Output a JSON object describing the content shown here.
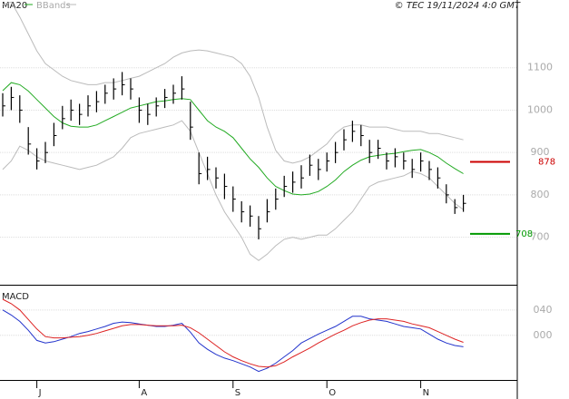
{
  "chart_data": [
    {
      "type": "ohlc",
      "source": "© TEC 19/11/2024 4:0 GMT",
      "high": [
        1040,
        1055,
        1035,
        960,
        910,
        925,
        970,
        1010,
        1025,
        1015,
        1035,
        1045,
        1060,
        1075,
        1090,
        1075,
        1030,
        1015,
        1030,
        1050,
        1060,
        1080,
        1020,
        900,
        890,
        865,
        850,
        820,
        785,
        775,
        750,
        790,
        815,
        845,
        855,
        870,
        895,
        885,
        900,
        925,
        955,
        975,
        965,
        930,
        930,
        900,
        910,
        900,
        885,
        900,
        880,
        865,
        825,
        790,
        800
      ],
      "low": [
        985,
        1000,
        970,
        895,
        860,
        875,
        915,
        955,
        975,
        965,
        985,
        995,
        1015,
        1025,
        1035,
        1025,
        970,
        965,
        985,
        1005,
        1015,
        1025,
        930,
        825,
        835,
        815,
        790,
        760,
        735,
        725,
        695,
        735,
        765,
        795,
        805,
        815,
        845,
        835,
        855,
        875,
        905,
        925,
        915,
        875,
        885,
        860,
        865,
        860,
        840,
        855,
        835,
        815,
        780,
        755,
        760
      ],
      "close": [
        1010,
        1030,
        1000,
        920,
        880,
        900,
        940,
        980,
        1000,
        990,
        1010,
        1020,
        1040,
        1050,
        1060,
        1050,
        1000,
        990,
        1010,
        1030,
        1040,
        1050,
        960,
        850,
        860,
        840,
        820,
        790,
        760,
        750,
        720,
        760,
        790,
        820,
        830,
        840,
        870,
        860,
        880,
        900,
        930,
        950,
        940,
        900,
        910,
        880,
        890,
        880,
        860,
        880,
        860,
        840,
        800,
        770,
        780
      ],
      "bar_color": "#000000",
      "overlays": [
        {
          "name": "MA20",
          "color": "#22aa22",
          "values": [
            1046,
            1065,
            1060,
            1045,
            1025,
            1005,
            985,
            970,
            962,
            960,
            960,
            965,
            975,
            985,
            995,
            1005,
            1010,
            1015,
            1020,
            1022,
            1025,
            1027,
            1025,
            1000,
            975,
            960,
            950,
            935,
            910,
            885,
            865,
            840,
            820,
            810,
            802,
            800,
            802,
            808,
            820,
            835,
            855,
            870,
            882,
            890,
            893,
            896,
            898,
            902,
            905,
            907,
            900,
            890,
            875,
            862,
            850
          ]
        },
        {
          "name": "BBands",
          "color": "#bbbbbb",
          "upper": [
            1250,
            1255,
            1220,
            1180,
            1140,
            1110,
            1095,
            1080,
            1070,
            1065,
            1060,
            1060,
            1065,
            1065,
            1070,
            1075,
            1080,
            1090,
            1100,
            1110,
            1125,
            1135,
            1140,
            1142,
            1140,
            1135,
            1130,
            1125,
            1110,
            1080,
            1030,
            960,
            905,
            880,
            875,
            880,
            890,
            905,
            920,
            945,
            960,
            965,
            965,
            960,
            960,
            960,
            955,
            950,
            950,
            950,
            945,
            945,
            940,
            935,
            930
          ],
          "lower": [
            860,
            880,
            915,
            905,
            890,
            880,
            875,
            870,
            865,
            860,
            865,
            870,
            880,
            890,
            910,
            935,
            945,
            950,
            955,
            960,
            965,
            975,
            950,
            900,
            850,
            800,
            760,
            730,
            700,
            660,
            645,
            660,
            680,
            695,
            700,
            695,
            700,
            705,
            705,
            720,
            740,
            760,
            790,
            820,
            830,
            835,
            840,
            845,
            855,
            850,
            840,
            820,
            800,
            780,
            765
          ]
        }
      ],
      "levels": [
        {
          "value": 878,
          "color": "#cc0000"
        },
        {
          "value": 708,
          "color": "#009900"
        }
      ],
      "ylim": [
        590,
        1260
      ],
      "yticks": [
        700,
        800,
        900,
        1000,
        1100
      ],
      "grid": true
    },
    {
      "type": "macd",
      "title": "MACD",
      "categories": [
        null,
        null,
        null,
        null,
        "J",
        null,
        null,
        null,
        null,
        null,
        null,
        null,
        null,
        null,
        null,
        null,
        "A",
        null,
        null,
        null,
        null,
        null,
        null,
        null,
        null,
        null,
        null,
        "S",
        null,
        null,
        null,
        null,
        null,
        null,
        null,
        null,
        null,
        null,
        "O",
        null,
        null,
        null,
        null,
        null,
        null,
        null,
        null,
        null,
        null,
        "N",
        null,
        null,
        null,
        null,
        null
      ],
      "series": [
        {
          "color": "#2233cc",
          "values": [
            40,
            32,
            22,
            8,
            -8,
            -12,
            -10,
            -6,
            -2,
            3,
            6,
            10,
            14,
            19,
            21,
            20,
            18,
            16,
            14,
            14,
            16,
            19,
            5,
            -12,
            -22,
            -30,
            -36,
            -40,
            -45,
            -50,
            -57,
            -52,
            -44,
            -34,
            -24,
            -12,
            -5,
            2,
            8,
            14,
            22,
            30,
            30,
            26,
            24,
            22,
            18,
            14,
            12,
            10,
            2,
            -6,
            -12,
            -16,
            -18
          ]
        },
        {
          "color": "#dd2222",
          "values": [
            57,
            50,
            40,
            25,
            10,
            -2,
            -4,
            -4,
            -3,
            -2,
            0,
            3,
            7,
            11,
            15,
            17,
            17,
            16,
            15,
            15,
            15,
            16,
            12,
            4,
            -6,
            -16,
            -26,
            -34,
            -40,
            -45,
            -49,
            -50,
            -48,
            -42,
            -34,
            -27,
            -20,
            -12,
            -5,
            2,
            8,
            15,
            20,
            24,
            26,
            26,
            24,
            22,
            18,
            15,
            12,
            6,
            0,
            -6,
            -11
          ]
        }
      ],
      "ylim": [
        -69,
        77
      ],
      "yticks": [
        {
          "value": 0,
          "label": "000"
        },
        {
          "value": 40,
          "label": "040"
        }
      ],
      "grid": true
    }
  ]
}
